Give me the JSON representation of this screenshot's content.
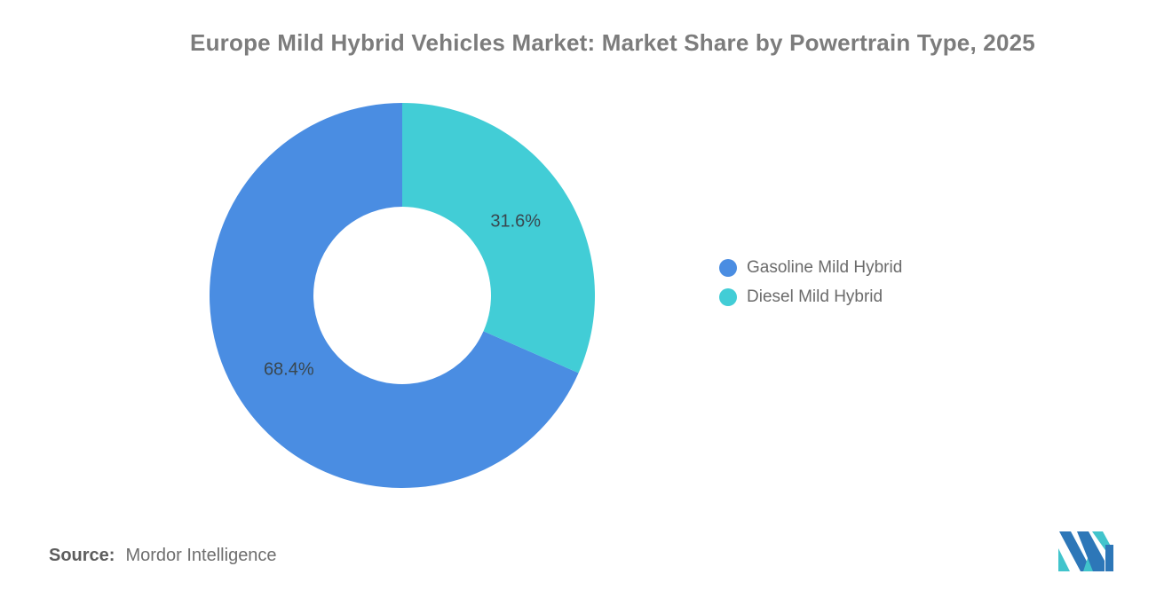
{
  "title": "Europe Mild Hybrid Vehicles Market: Market Share by Powertrain Type, 2025",
  "chart_data": {
    "type": "pie",
    "subtype": "donut",
    "series": [
      {
        "label": "Gasoline Mild Hybrid",
        "value": 68.4,
        "color": "#4A8DE2"
      },
      {
        "label": "Diesel Mild Hybrid",
        "value": 31.6,
        "color": "#42CDD6"
      }
    ],
    "value_format": "percent",
    "data_labels": [
      "68.4%",
      "31.6%"
    ],
    "start_angle": 0,
    "direction": "counterclockwise",
    "inner_radius_ratio": 0.46,
    "label_color": "#39474F",
    "legend_position": "right",
    "background": "#FFFFFF"
  },
  "source": {
    "label": "Source:",
    "text": "Mordor Intelligence"
  },
  "logo": {
    "name": "mordor-intelligence-logo",
    "blue": "#2D77B8",
    "teal": "#41C4CC"
  }
}
